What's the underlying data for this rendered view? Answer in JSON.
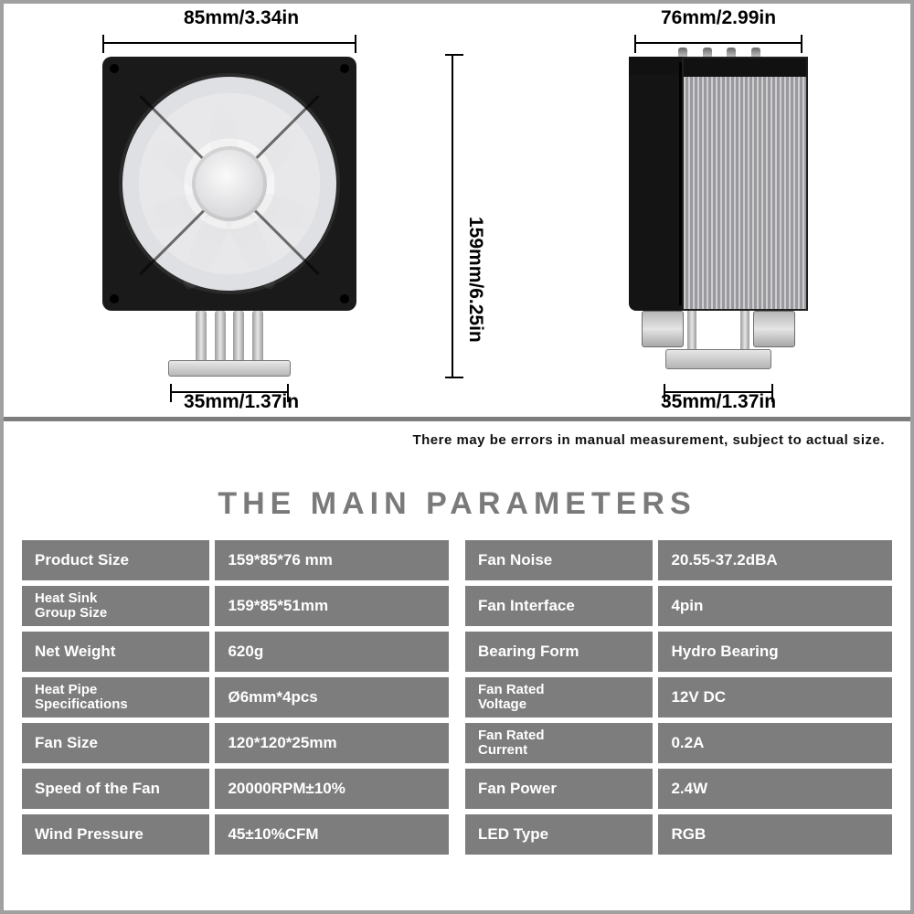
{
  "dimensions": {
    "front_top": "85mm/3.34in",
    "front_height": "159mm/6.25in",
    "front_bottom": "35mm/1.37in",
    "side_top": "76mm/2.99in",
    "side_bottom": "35mm/1.37in"
  },
  "disclaimer": "There may be errors in manual measurement, subject to actual size.",
  "title": "THE MAIN PARAMETERS",
  "colors": {
    "cell_bg": "#7d7d7d",
    "cell_text": "#ffffff",
    "title_color": "#7a7a7a",
    "border": "#a0a0a0",
    "fan_frame": "#1a1a1a"
  },
  "params_left": [
    {
      "label": "Product Size",
      "value": "159*85*76 mm"
    },
    {
      "label": "Heat Sink Group Size",
      "value": "159*85*51mm",
      "two_line": true
    },
    {
      "label": "Net Weight",
      "value": "620g"
    },
    {
      "label": "Heat Pipe Specifications",
      "value": "Ø6mm*4pcs",
      "two_line": true
    },
    {
      "label": "Fan Size",
      "value": "120*120*25mm"
    },
    {
      "label": "Speed of the Fan",
      "value": "20000RPM±10%"
    },
    {
      "label": "Wind Pressure",
      "value": "45±10%CFM"
    }
  ],
  "params_right": [
    {
      "label": "Fan Noise",
      "value": "20.55-37.2dBA"
    },
    {
      "label": "Fan Interface",
      "value": "4pin"
    },
    {
      "label": "Bearing Form",
      "value": "Hydro Bearing"
    },
    {
      "label": "Fan Rated Voltage",
      "value": "12V DC",
      "two_line": true
    },
    {
      "label": "Fan Rated Current",
      "value": "0.2A",
      "two_line": true
    },
    {
      "label": "Fan Power",
      "value": "2.4W"
    },
    {
      "label": "LED Type",
      "value": "RGB"
    }
  ]
}
